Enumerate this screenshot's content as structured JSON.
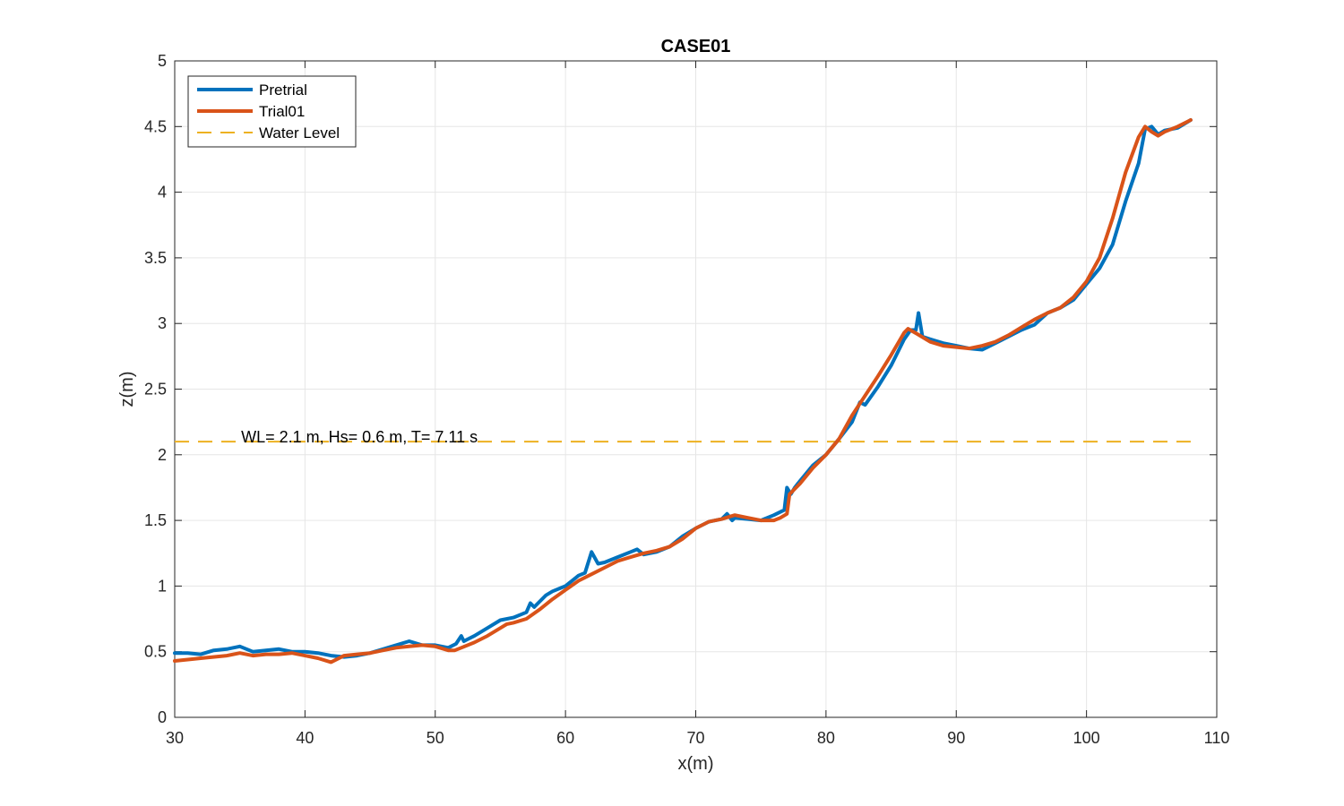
{
  "chart_data": {
    "type": "line",
    "title": "CASE01",
    "xlabel": "x(m)",
    "ylabel": "z(m)",
    "xlim": [
      30,
      110
    ],
    "ylim": [
      0,
      5
    ],
    "xticks": [
      30,
      40,
      50,
      60,
      70,
      80,
      90,
      100,
      110
    ],
    "yticks": [
      0,
      0.5,
      1,
      1.5,
      2,
      2.5,
      3,
      3.5,
      4,
      4.5,
      5
    ],
    "xtick_labels": [
      "30",
      "40",
      "50",
      "60",
      "70",
      "80",
      "90",
      "100",
      "110"
    ],
    "ytick_labels": [
      "0",
      "0.5",
      "1",
      "1.5",
      "2",
      "2.5",
      "3",
      "3.5",
      "4",
      "4.5",
      "5"
    ],
    "grid": true,
    "legend_position": "top-left",
    "annotation": "WL= 2.1 m,   Hs= 0.6 m, T= 7.11 s",
    "series": [
      {
        "name": "Pretrial",
        "color": "#0072BD",
        "style": "solid",
        "x": [
          30,
          31,
          32,
          33,
          34,
          35,
          36,
          37,
          38,
          39,
          40,
          41,
          42,
          43,
          44,
          45,
          46,
          47,
          48,
          49,
          50,
          51,
          51.6,
          52,
          52.2,
          52.6,
          53,
          54,
          55,
          56,
          57,
          57.3,
          57.6,
          58,
          58.5,
          59,
          60,
          61,
          61.5,
          62,
          62.5,
          63,
          64,
          65,
          65.5,
          66,
          67,
          68,
          69,
          70,
          71,
          72,
          72.4,
          72.8,
          73,
          74,
          75,
          76,
          76.8,
          77,
          77.3,
          77.6,
          78,
          79,
          80,
          81,
          82,
          82.6,
          83,
          84,
          85,
          86,
          86.5,
          86.9,
          87.1,
          87.4,
          88,
          89,
          90,
          91,
          92,
          93,
          94,
          95,
          96,
          97,
          98,
          99,
          100,
          101,
          102,
          103,
          104,
          104.5,
          105,
          105.5,
          106,
          107,
          108
        ],
        "y": [
          0.49,
          0.49,
          0.48,
          0.51,
          0.52,
          0.54,
          0.5,
          0.51,
          0.52,
          0.5,
          0.5,
          0.49,
          0.47,
          0.46,
          0.47,
          0.49,
          0.52,
          0.55,
          0.58,
          0.55,
          0.55,
          0.53,
          0.56,
          0.62,
          0.58,
          0.6,
          0.62,
          0.68,
          0.74,
          0.76,
          0.8,
          0.87,
          0.84,
          0.88,
          0.93,
          0.96,
          1.0,
          1.08,
          1.1,
          1.26,
          1.17,
          1.18,
          1.22,
          1.26,
          1.28,
          1.24,
          1.26,
          1.3,
          1.38,
          1.44,
          1.49,
          1.51,
          1.55,
          1.5,
          1.52,
          1.51,
          1.5,
          1.54,
          1.58,
          1.75,
          1.7,
          1.75,
          1.8,
          1.92,
          2.0,
          2.12,
          2.25,
          2.4,
          2.38,
          2.52,
          2.68,
          2.88,
          2.95,
          2.95,
          3.08,
          2.9,
          2.88,
          2.85,
          2.83,
          2.81,
          2.8,
          2.85,
          2.9,
          2.95,
          2.99,
          3.08,
          3.12,
          3.18,
          3.3,
          3.42,
          3.6,
          3.93,
          4.22,
          4.48,
          4.5,
          4.44,
          4.47,
          4.49,
          4.55
        ]
      },
      {
        "name": "Trial01",
        "color": "#D95319",
        "style": "solid",
        "x": [
          30,
          32,
          34,
          35,
          36,
          37,
          38,
          39,
          40,
          41,
          42,
          43,
          44,
          45,
          46,
          47,
          48,
          49,
          50,
          51,
          51.5,
          52,
          53,
          54,
          55,
          55.5,
          56,
          57,
          58,
          59,
          60,
          61,
          62,
          63,
          64,
          65,
          66,
          67,
          68,
          69,
          70,
          71,
          72,
          73,
          74,
          75,
          76,
          76.5,
          77,
          77.2,
          78,
          79,
          80,
          81,
          82,
          83,
          84,
          85,
          86,
          86.3,
          87,
          88,
          89,
          90,
          91,
          92,
          93,
          94,
          95,
          96,
          97,
          98,
          99,
          100,
          101,
          102,
          103,
          104,
          104.5,
          105,
          105.5,
          106,
          107,
          108
        ],
        "y": [
          0.43,
          0.45,
          0.47,
          0.49,
          0.47,
          0.48,
          0.48,
          0.49,
          0.47,
          0.45,
          0.42,
          0.47,
          0.48,
          0.49,
          0.51,
          0.53,
          0.54,
          0.55,
          0.54,
          0.51,
          0.51,
          0.53,
          0.57,
          0.62,
          0.68,
          0.71,
          0.72,
          0.75,
          0.82,
          0.9,
          0.97,
          1.04,
          1.09,
          1.14,
          1.19,
          1.22,
          1.25,
          1.27,
          1.3,
          1.36,
          1.44,
          1.49,
          1.51,
          1.54,
          1.52,
          1.5,
          1.5,
          1.52,
          1.55,
          1.7,
          1.78,
          1.9,
          2.0,
          2.12,
          2.3,
          2.45,
          2.6,
          2.76,
          2.93,
          2.96,
          2.92,
          2.86,
          2.83,
          2.82,
          2.81,
          2.83,
          2.86,
          2.91,
          2.97,
          3.03,
          3.08,
          3.12,
          3.2,
          3.32,
          3.5,
          3.8,
          4.15,
          4.42,
          4.5,
          4.46,
          4.43,
          4.46,
          4.5,
          4.55
        ]
      },
      {
        "name": "Water Level",
        "color": "#EDB120",
        "style": "dashed",
        "x": [
          30,
          108
        ],
        "y": [
          2.1,
          2.1
        ]
      }
    ]
  }
}
